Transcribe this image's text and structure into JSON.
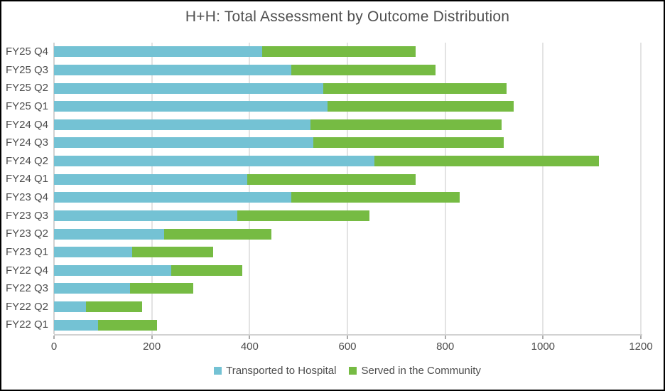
{
  "title": "H+H: Total Assessment by Outcome Distribution",
  "chart_data": {
    "type": "bar",
    "orientation": "horizontal",
    "stacked": true,
    "title": "H+H: Total Assessment by Outcome Distribution",
    "categories": [
      "FY25 Q4",
      "FY25 Q3",
      "FY25 Q2",
      "FY25 Q1",
      "FY24 Q4",
      "FY24 Q3",
      "FY24 Q2",
      "FY24 Q1",
      "FY23 Q4",
      "FY23 Q3",
      "FY23 Q2",
      "FY23 Q1",
      "FY22 Q4",
      "FY22 Q3",
      "FY22 Q2",
      "FY22 Q1"
    ],
    "series": [
      {
        "name": "Transported to Hospital",
        "color": "#74c2d4",
        "values": [
          425,
          485,
          550,
          560,
          525,
          530,
          655,
          395,
          485,
          375,
          225,
          160,
          240,
          155,
          65,
          90
        ]
      },
      {
        "name": "Served in the Community",
        "color": "#76bb43",
        "values": [
          315,
          295,
          375,
          380,
          390,
          390,
          460,
          345,
          345,
          270,
          220,
          165,
          145,
          130,
          115,
          120
        ]
      }
    ],
    "totals": [
      740,
      780,
      925,
      940,
      915,
      920,
      1115,
      740,
      830,
      645,
      445,
      325,
      385,
      285,
      180,
      210
    ],
    "xlabel": "",
    "ylabel": "",
    "xlim": [
      0,
      1200
    ],
    "xticks": [
      0,
      200,
      400,
      600,
      800,
      1000,
      1200
    ],
    "grid": true,
    "legend_position": "bottom"
  },
  "colors": {
    "bar_hospital": "#74c2d4",
    "bar_community": "#76bb43",
    "text": "#4c4c4c",
    "gridline": "#e3e3e3",
    "axis_line": "#d2d2d2",
    "frame_border": "#000000",
    "background": "#ffffff"
  }
}
